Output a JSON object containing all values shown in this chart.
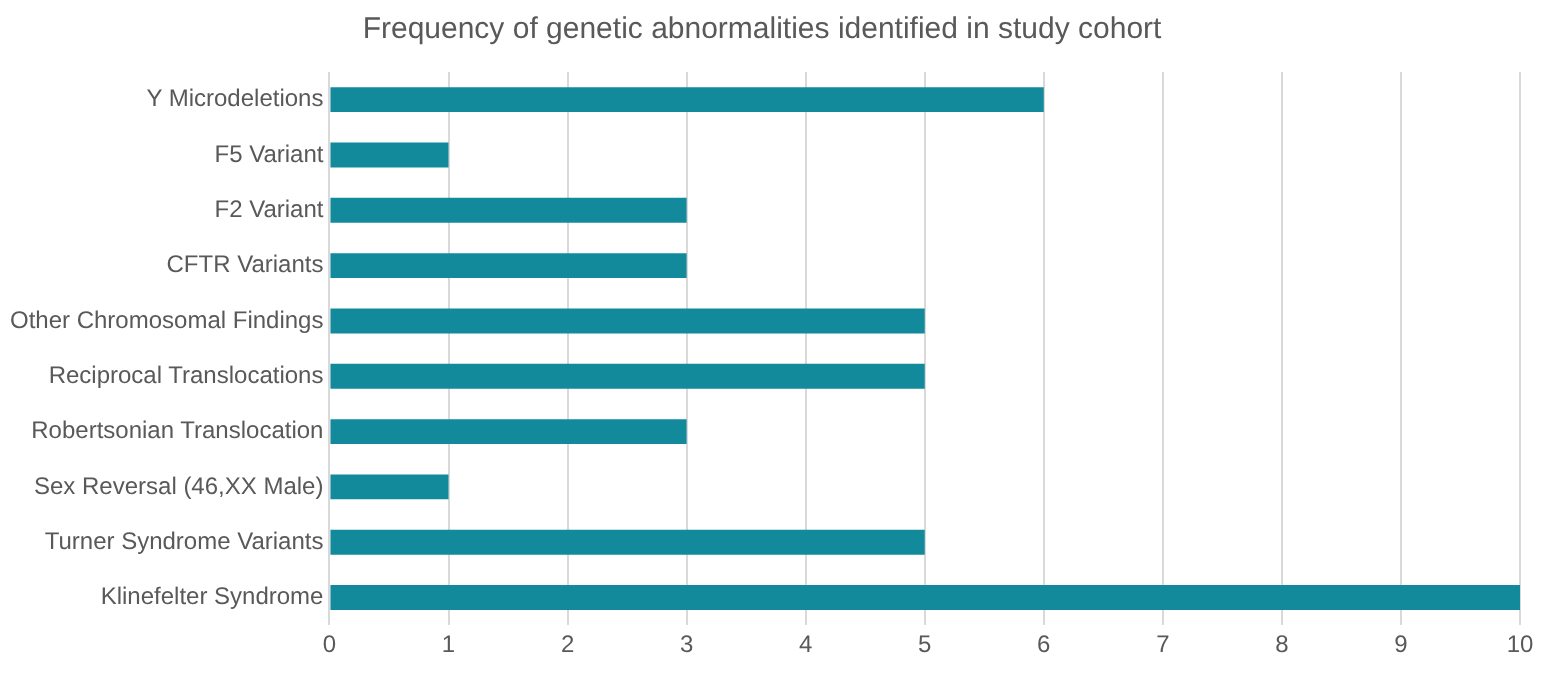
{
  "chart_data": {
    "type": "bar",
    "orientation": "horizontal",
    "title": "Frequency of genetic abnormalities identified in study cohort",
    "categories": [
      "Y Microdeletions",
      "F5 Variant",
      "F2 Variant",
      "CFTR Variants",
      "Other Chromosomal Findings",
      "Reciprocal Translocations",
      "Robertsonian Translocation",
      "Sex Reversal (46,XX Male)",
      "Turner Syndrome Variants",
      "Klinefelter Syndrome"
    ],
    "values": [
      6,
      1,
      3,
      3,
      5,
      5,
      3,
      1,
      5,
      10
    ],
    "color": "#138a9c",
    "xlim": [
      0,
      10
    ],
    "xticks": [
      0,
      1,
      2,
      3,
      4,
      5,
      6,
      7,
      8,
      9,
      10
    ],
    "grid": "x",
    "legend": false
  }
}
